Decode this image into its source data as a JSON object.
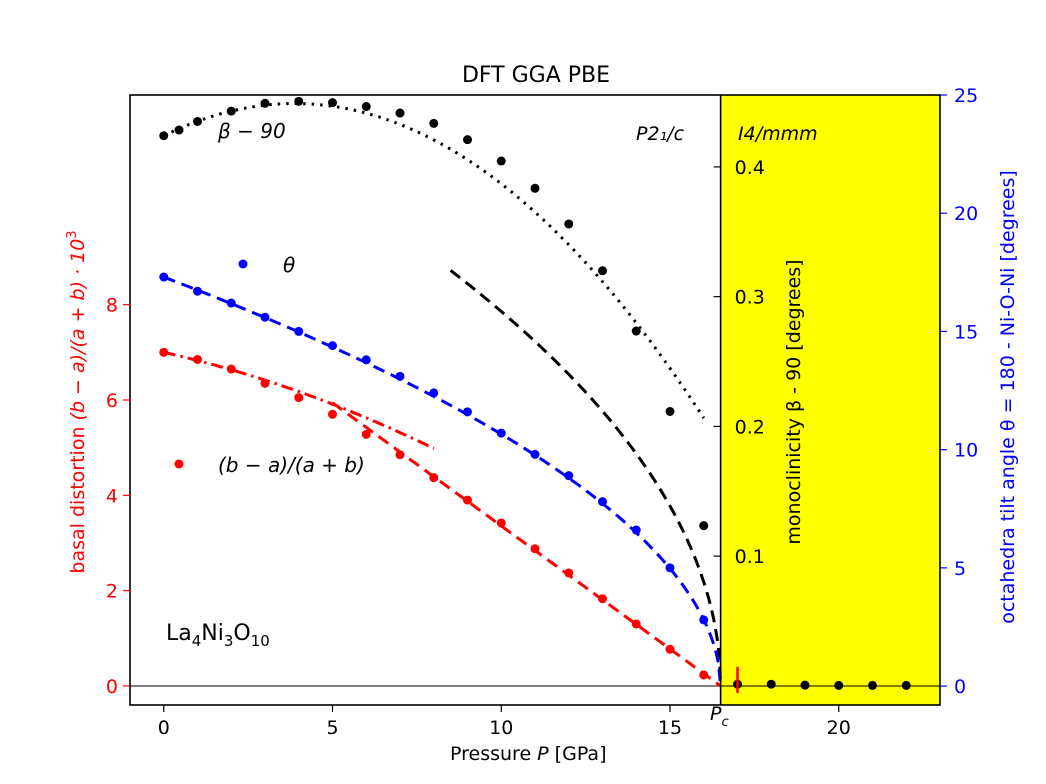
{
  "chart_data": {
    "type": "scatter",
    "title": "DFT GGA PBE",
    "xlabel_prefix": "Pressure ",
    "xlabel_var": "P",
    "xlabel_unit": " [GPa]",
    "xlim": [
      -1,
      23
    ],
    "xticks": [
      0,
      5,
      10,
      15,
      20
    ],
    "left_axis": {
      "label_prefix": "basal distortion ",
      "label_expr": "(b − a)/(a + b) · 10",
      "label_sup": "3",
      "ylim": [
        -0.4,
        12.4
      ],
      "ticks": [
        0,
        2,
        4,
        6,
        8
      ],
      "color": "#ff0000"
    },
    "middle_axis": {
      "label": "monoclinicity β - 90 [degrees]",
      "ylim": [
        -0.0147,
        0.4554
      ],
      "ticks": [
        0.1,
        0.2,
        0.3,
        0.4
      ],
      "tick_labels": [
        "0.1",
        "0.2",
        "0.3",
        "0.4"
      ],
      "color": "#000000"
    },
    "right_axis": {
      "label": "octahedra tilt angle θ = 180 - Ni-O-Ni [degrees]",
      "ylim": [
        -0.8,
        25
      ],
      "ticks": [
        0,
        5,
        10,
        15,
        20,
        25
      ],
      "color": "#0000ff"
    },
    "phase_labels": {
      "low": "P2₁/c",
      "high": "I4/mmm"
    },
    "phase_boundary": 16.5,
    "pc_label": "P",
    "pc_sub": "c",
    "compound": {
      "base": "La",
      "s1": "4",
      "mid": "Ni",
      "s2": "3",
      "mid2": "O",
      "s3": "10"
    },
    "series": [
      {
        "name": "β − 90",
        "axis": "middle",
        "color": "#000000",
        "x": [
          0,
          1,
          2,
          3,
          4,
          5,
          6,
          7,
          8,
          9,
          10,
          11,
          12,
          13,
          14,
          15,
          16,
          17,
          18,
          19,
          20,
          21,
          22
        ],
        "values": [
          0.424,
          0.435,
          0.443,
          0.449,
          0.4505,
          0.4495,
          0.4465,
          0.4415,
          0.4335,
          0.421,
          0.4045,
          0.3835,
          0.356,
          0.32,
          0.2735,
          0.2115,
          0.1235,
          0.0013,
          0.0013,
          0.0006,
          0.0004,
          0.0004,
          0.0004
        ]
      },
      {
        "name": "θ",
        "axis": "right",
        "color": "#0000ff",
        "x": [
          0,
          1,
          2,
          3,
          4,
          5,
          6,
          7,
          8,
          9,
          10,
          11,
          12,
          13,
          14,
          15,
          16
        ],
        "values": [
          17.3,
          16.7,
          16.2,
          15.6,
          15.0,
          14.4,
          13.8,
          13.1,
          12.4,
          11.6,
          10.7,
          9.8,
          8.9,
          7.8,
          6.6,
          5.0,
          2.8
        ]
      },
      {
        "name": "(b − a)/(a + b)",
        "axis": "left",
        "color": "#ff0000",
        "x": [
          0,
          1,
          2,
          3,
          4,
          5,
          6,
          7,
          8,
          9,
          10,
          11,
          12,
          13,
          14,
          15,
          16
        ],
        "values": [
          7.0,
          6.85,
          6.65,
          6.35,
          6.05,
          5.7,
          5.28,
          4.85,
          4.37,
          3.9,
          3.42,
          2.88,
          2.37,
          1.83,
          1.3,
          0.77,
          0.23
        ]
      }
    ],
    "fits": [
      {
        "axis": "middle",
        "color": "#000000",
        "style": "dotted",
        "kind": "poly",
        "c": [
          0.424,
          0.0128,
          -0.00165
        ],
        "x_range": [
          0,
          16
        ]
      },
      {
        "axis": "middle",
        "color": "#000000",
        "style": "dashed",
        "kind": "sqrt",
        "A": 0.1132,
        "Pc": 16.5,
        "exp": 0.5,
        "x_range": [
          8.5,
          16.5
        ]
      },
      {
        "axis": "right",
        "color": "#0000ff",
        "style": "dashed",
        "kind": "power",
        "A": 17.3,
        "Pc": 16.5,
        "exp": 0.52,
        "x_range": [
          0,
          16.5
        ]
      },
      {
        "axis": "left",
        "color": "#ff0000",
        "style": "dashdot",
        "kind": "poly",
        "c": [
          7.0,
          -0.16,
          -0.0115
        ],
        "x_range": [
          0,
          8
        ]
      },
      {
        "axis": "left",
        "color": "#ff0000",
        "style": "dashed",
        "kind": "linear",
        "A": 0.5167,
        "Pc": 16.5,
        "x_range": [
          5,
          16.5
        ]
      }
    ]
  }
}
